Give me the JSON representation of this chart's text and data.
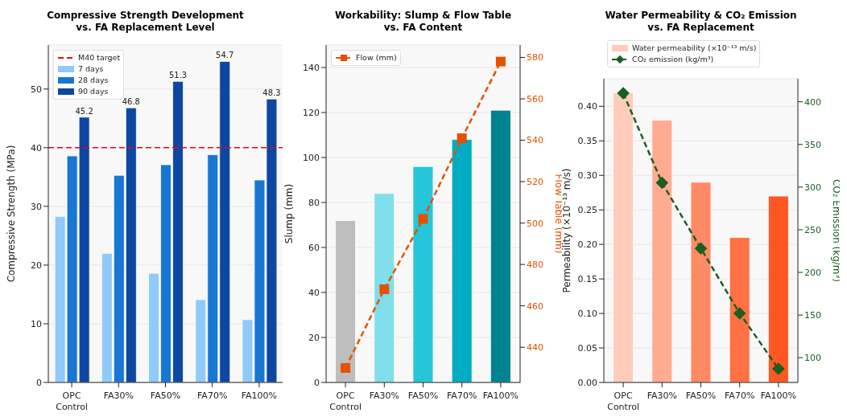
{
  "chart_data": [
    {
      "type": "bar",
      "title": "Compressive Strength Development\nvs. FA Replacement Level",
      "ylabel": "Compressive Strength (MPa)",
      "categories": [
        "OPC\nControl",
        "FA30%",
        "FA50%",
        "FA70%",
        "FA100%"
      ],
      "series": [
        {
          "name": "7 days",
          "color": "#90caf9",
          "values": [
            28.3,
            22.0,
            18.6,
            14.1,
            10.7
          ]
        },
        {
          "name": "28 days",
          "color": "#1976d2",
          "values": [
            38.6,
            35.3,
            37.1,
            38.8,
            34.5
          ]
        },
        {
          "name": "90 days",
          "color": "#0d47a1",
          "values": [
            45.2,
            46.8,
            51.3,
            54.7,
            48.3
          ],
          "value_labels": [
            "45.2",
            "46.8",
            "51.3",
            "54.7",
            "48.3"
          ]
        }
      ],
      "ylim": [
        0,
        57.5
      ],
      "yticks": [
        0,
        10,
        20,
        30,
        40,
        50
      ],
      "grid": "y",
      "legend": "top left",
      "ref_lines": [
        {
          "axis": "y",
          "value": 40,
          "label": "M40 target",
          "color": "#ff0000",
          "line_style": "dashed"
        }
      ]
    },
    {
      "type": "bar",
      "title": "Workability: Slump & Flow Table\nvs. FA Content",
      "ylabel": "Slump (mm)",
      "y2label": "Flow Table (mm)",
      "categories": [
        "OPC\nControl",
        "FA30%",
        "FA50%",
        "FA70%",
        "FA100%"
      ],
      "series": [
        {
          "colors": [
            "#bdbdbd",
            "#80deea",
            "#26c6da",
            "#00acc1",
            "#00838f"
          ],
          "values": [
            72,
            84,
            96,
            108,
            121
          ]
        },
        {
          "type": "line",
          "name": "Flow (mm)",
          "color": "#e65100",
          "axis": "y2",
          "marker": "square",
          "line_style": "dashed",
          "values": [
            430,
            468,
            502,
            541,
            578
          ]
        }
      ],
      "ylim": [
        0,
        150
      ],
      "yticks": [
        0,
        20,
        40,
        60,
        80,
        100,
        120,
        140
      ],
      "y2lim": [
        423,
        586
      ],
      "y2ticks": [
        440,
        460,
        480,
        500,
        520,
        540,
        560,
        580
      ],
      "grid": "y",
      "legend": "top left"
    },
    {
      "type": "bar",
      "title": "Water Permeability & CO₂ Emission\nvs. FA Replacement",
      "ylabel": "Permeability (×10⁻¹³ m/s)",
      "y2label": "CO₂ Emission (kg/m³)",
      "categories": [
        "OPC\nControl",
        "FA30%",
        "FA50%",
        "FA70%",
        "FA100%"
      ],
      "series": [
        {
          "name": "Water permeability (×10⁻¹³ m/s)",
          "colors": [
            "#ffccbc",
            "#ffab91",
            "#ff8a65",
            "#ff7043",
            "#ff5722"
          ],
          "values": [
            0.42,
            0.38,
            0.29,
            0.21,
            0.27
          ]
        },
        {
          "type": "line",
          "name": "CO₂ emission (kg/m³)",
          "color": "#1b5e20",
          "axis": "y2",
          "marker": "diamond",
          "line_style": "dashed",
          "values": [
            410,
            305,
            228,
            152,
            87
          ]
        }
      ],
      "ylim": [
        0,
        0.44
      ],
      "yticks": [
        {
          "value": 0,
          "label": "0.00"
        },
        {
          "value": 0.05,
          "label": "0.05"
        },
        {
          "value": 0.1,
          "label": "0.10"
        },
        {
          "value": 0.15,
          "label": "0.15"
        },
        {
          "value": 0.2,
          "label": "0.20"
        },
        {
          "value": 0.25,
          "label": "0.25"
        },
        {
          "value": 0.3,
          "label": "0.30"
        },
        {
          "value": 0.35,
          "label": "0.35"
        },
        {
          "value": 0.4,
          "label": "0.40"
        }
      ],
      "y2lim": [
        71,
        427
      ],
      "y2ticks": [
        100,
        150,
        200,
        250,
        300,
        350,
        400
      ],
      "grid": "y",
      "legend": "top"
    }
  ]
}
